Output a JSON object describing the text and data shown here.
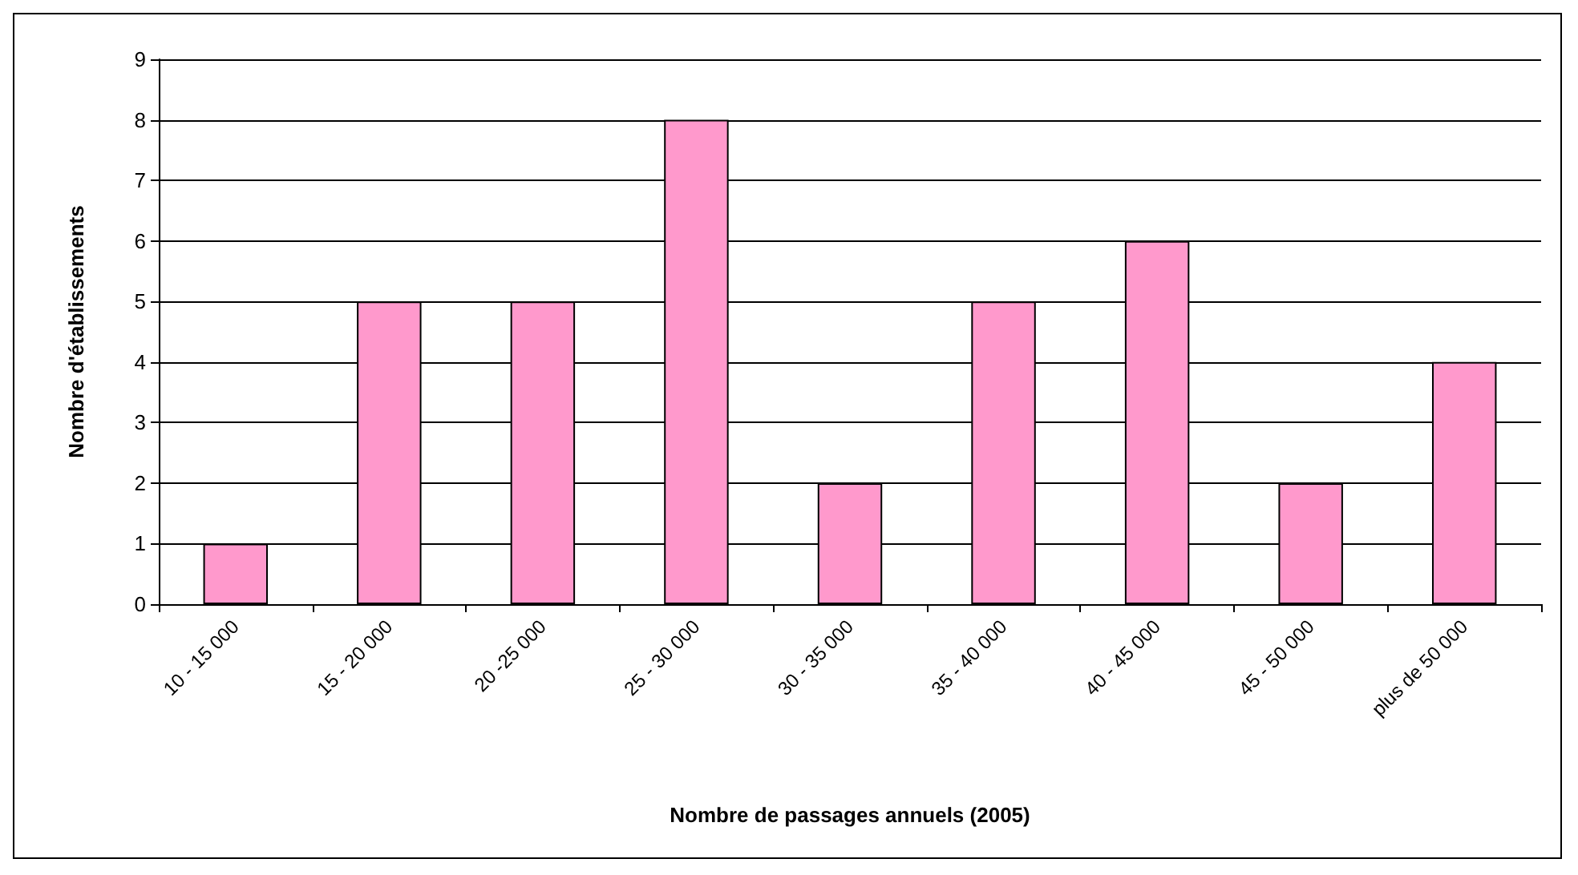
{
  "chart_data": {
    "type": "bar",
    "xlabel": "Nombre de passages annuels (2005)",
    "ylabel": "Nombre d'établissements",
    "categories": [
      "10 - 15 000",
      "15 - 20 000",
      "20 -25 000",
      "25 - 30 000",
      "30 - 35 000",
      "35 - 40 000",
      "40 - 45 000",
      "45 - 50 000",
      "plus de 50 000"
    ],
    "values": [
      1,
      5,
      5,
      8,
      2,
      5,
      6,
      2,
      4
    ],
    "color": "#ff99cc",
    "ylim": [
      0,
      9
    ],
    "yticks": [
      0,
      1,
      2,
      3,
      4,
      5,
      6,
      7,
      8,
      9
    ],
    "grid": "y"
  }
}
